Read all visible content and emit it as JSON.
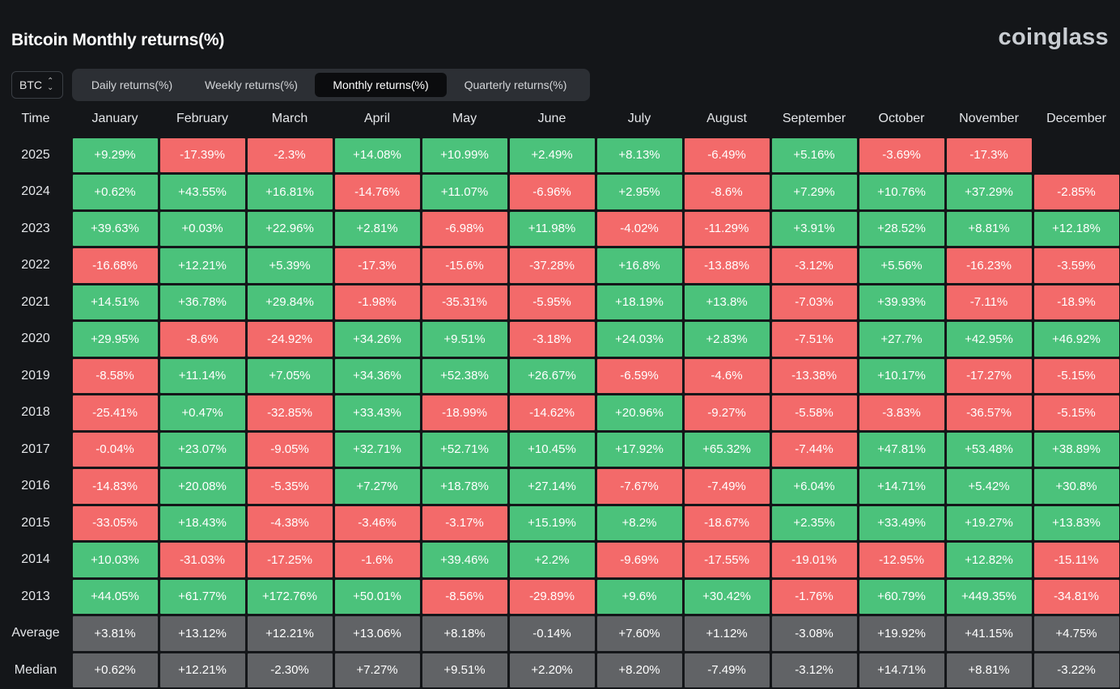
{
  "title": "Bitcoin Monthly returns(%)",
  "brand": "coinglass",
  "coin_selector": {
    "value": "BTC",
    "icon": "up-down-chevron-icon"
  },
  "tabs": [
    {
      "label": "Daily returns(%)",
      "active": false
    },
    {
      "label": "Weekly returns(%)",
      "active": false
    },
    {
      "label": "Monthly returns(%)",
      "active": true
    },
    {
      "label": "Quarterly returns(%)",
      "active": false
    }
  ],
  "colors": {
    "positive": "#4bc27b",
    "negative": "#f36a6a",
    "stat": "#616366",
    "background": "#141619"
  },
  "table": {
    "time_header": "Time",
    "months": [
      "January",
      "February",
      "March",
      "April",
      "May",
      "June",
      "July",
      "August",
      "September",
      "October",
      "November",
      "December"
    ],
    "rows": [
      {
        "year": "2025",
        "values": [
          "+9.29%",
          "-17.39%",
          "-2.3%",
          "+14.08%",
          "+10.99%",
          "+2.49%",
          "+8.13%",
          "-6.49%",
          "+5.16%",
          "-3.69%",
          "-17.3%",
          ""
        ]
      },
      {
        "year": "2024",
        "values": [
          "+0.62%",
          "+43.55%",
          "+16.81%",
          "-14.76%",
          "+11.07%",
          "-6.96%",
          "+2.95%",
          "-8.6%",
          "+7.29%",
          "+10.76%",
          "+37.29%",
          "-2.85%"
        ]
      },
      {
        "year": "2023",
        "values": [
          "+39.63%",
          "+0.03%",
          "+22.96%",
          "+2.81%",
          "-6.98%",
          "+11.98%",
          "-4.02%",
          "-11.29%",
          "+3.91%",
          "+28.52%",
          "+8.81%",
          "+12.18%"
        ]
      },
      {
        "year": "2022",
        "values": [
          "-16.68%",
          "+12.21%",
          "+5.39%",
          "-17.3%",
          "-15.6%",
          "-37.28%",
          "+16.8%",
          "-13.88%",
          "-3.12%",
          "+5.56%",
          "-16.23%",
          "-3.59%"
        ]
      },
      {
        "year": "2021",
        "values": [
          "+14.51%",
          "+36.78%",
          "+29.84%",
          "-1.98%",
          "-35.31%",
          "-5.95%",
          "+18.19%",
          "+13.8%",
          "-7.03%",
          "+39.93%",
          "-7.11%",
          "-18.9%"
        ]
      },
      {
        "year": "2020",
        "values": [
          "+29.95%",
          "-8.6%",
          "-24.92%",
          "+34.26%",
          "+9.51%",
          "-3.18%",
          "+24.03%",
          "+2.83%",
          "-7.51%",
          "+27.7%",
          "+42.95%",
          "+46.92%"
        ]
      },
      {
        "year": "2019",
        "values": [
          "-8.58%",
          "+11.14%",
          "+7.05%",
          "+34.36%",
          "+52.38%",
          "+26.67%",
          "-6.59%",
          "-4.6%",
          "-13.38%",
          "+10.17%",
          "-17.27%",
          "-5.15%"
        ]
      },
      {
        "year": "2018",
        "values": [
          "-25.41%",
          "+0.47%",
          "-32.85%",
          "+33.43%",
          "-18.99%",
          "-14.62%",
          "+20.96%",
          "-9.27%",
          "-5.58%",
          "-3.83%",
          "-36.57%",
          "-5.15%"
        ]
      },
      {
        "year": "2017",
        "values": [
          "-0.04%",
          "+23.07%",
          "-9.05%",
          "+32.71%",
          "+52.71%",
          "+10.45%",
          "+17.92%",
          "+65.32%",
          "-7.44%",
          "+47.81%",
          "+53.48%",
          "+38.89%"
        ]
      },
      {
        "year": "2016",
        "values": [
          "-14.83%",
          "+20.08%",
          "-5.35%",
          "+7.27%",
          "+18.78%",
          "+27.14%",
          "-7.67%",
          "-7.49%",
          "+6.04%",
          "+14.71%",
          "+5.42%",
          "+30.8%"
        ]
      },
      {
        "year": "2015",
        "values": [
          "-33.05%",
          "+18.43%",
          "-4.38%",
          "-3.46%",
          "-3.17%",
          "+15.19%",
          "+8.2%",
          "-18.67%",
          "+2.35%",
          "+33.49%",
          "+19.27%",
          "+13.83%"
        ]
      },
      {
        "year": "2014",
        "values": [
          "+10.03%",
          "-31.03%",
          "-17.25%",
          "-1.6%",
          "+39.46%",
          "+2.2%",
          "-9.69%",
          "-17.55%",
          "-19.01%",
          "-12.95%",
          "+12.82%",
          "-15.11%"
        ]
      },
      {
        "year": "2013",
        "values": [
          "+44.05%",
          "+61.77%",
          "+172.76%",
          "+50.01%",
          "-8.56%",
          "-29.89%",
          "+9.6%",
          "+30.42%",
          "-1.76%",
          "+60.79%",
          "+449.35%",
          "-34.81%"
        ]
      }
    ],
    "stats": [
      {
        "label": "Average",
        "values": [
          "+3.81%",
          "+13.12%",
          "+12.21%",
          "+13.06%",
          "+8.18%",
          "-0.14%",
          "+7.60%",
          "+1.12%",
          "-3.08%",
          "+19.92%",
          "+41.15%",
          "+4.75%"
        ]
      },
      {
        "label": "Median",
        "values": [
          "+0.62%",
          "+12.21%",
          "-2.30%",
          "+7.27%",
          "+9.51%",
          "+2.20%",
          "+8.20%",
          "-7.49%",
          "-3.12%",
          "+14.71%",
          "+8.81%",
          "-3.22%"
        ]
      }
    ]
  }
}
